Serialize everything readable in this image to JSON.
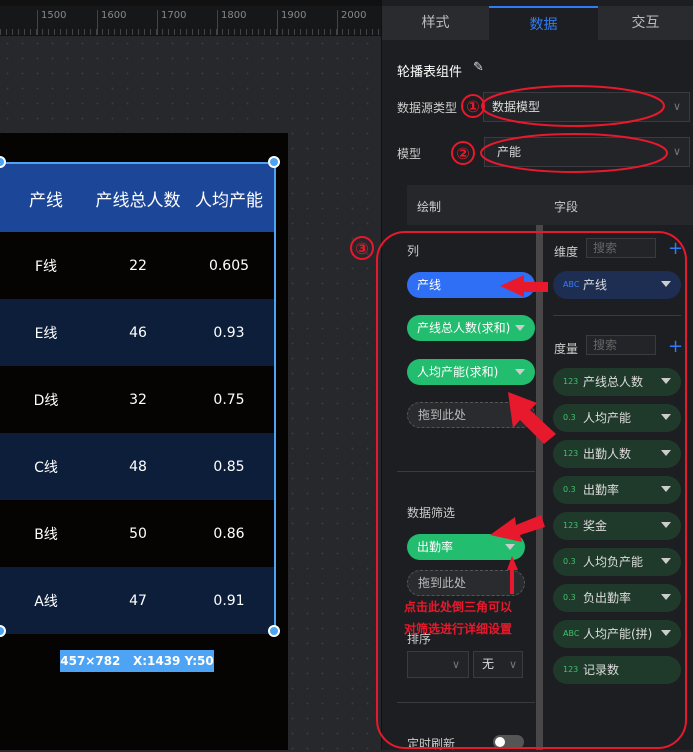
{
  "ruler": {
    "labels": [
      "1500",
      "1600",
      "1700",
      "1800",
      "1900",
      "2000"
    ]
  },
  "table": {
    "headers": [
      "产线",
      "产线总人数",
      "人均产能"
    ],
    "rows": [
      [
        "F线",
        "22",
        "0.605"
      ],
      [
        "E线",
        "46",
        "0.93"
      ],
      [
        "D线",
        "32",
        "0.75"
      ],
      [
        "C线",
        "48",
        "0.85"
      ],
      [
        "B线",
        "50",
        "0.86"
      ],
      [
        "A线",
        "47",
        "0.91"
      ]
    ],
    "header_color": "#1c4698",
    "alt_row_color": "#0d1e3a"
  },
  "selection": {
    "size_label": "457×782",
    "position_label": "X:1439 Y:50"
  },
  "panel": {
    "tabs": [
      "样式",
      "数据",
      "交互"
    ],
    "active_tab": "数据",
    "component_title": "轮播表组件",
    "datasource_label": "数据源类型",
    "datasource_value": "数据模型",
    "model_label": "模型",
    "model_value": "产能",
    "draw_header": "绘制",
    "field_header": "字段",
    "columns_label": "列",
    "columns": [
      "产线",
      "产线总人数(求和)",
      "人均产能(求和)"
    ],
    "drop_here": "拖到此处",
    "filter_label": "数据筛选",
    "filters": [
      "出勤率"
    ],
    "sort_label": "排序",
    "sort_field_value": "",
    "sort_order_value": "无",
    "auto_refresh_label": "定时刷新",
    "auto_refresh_on": false,
    "dimension_label": "维度",
    "measure_label": "度量",
    "search_placeholder": "搜索",
    "dimensions": [
      {
        "type": "ABC",
        "name": "产线"
      }
    ],
    "measures": [
      {
        "type": "123",
        "name": "产线总人数"
      },
      {
        "type": "0.3",
        "name": "人均产能"
      },
      {
        "type": "123",
        "name": "出勤人数"
      },
      {
        "type": "0.3",
        "name": "出勤率"
      },
      {
        "type": "123",
        "name": "奖金"
      },
      {
        "type": "0.3",
        "name": "人均负产能"
      },
      {
        "type": "0.3",
        "name": "负出勤率"
      },
      {
        "type": "ABC",
        "name": "人均产能(拼)"
      },
      {
        "type": "123",
        "name": "记录数"
      }
    ],
    "accent": "#2f7cf6",
    "measure_pill_color": "#22bd6e"
  },
  "annotations": {
    "markers": [
      "①",
      "②",
      "③"
    ],
    "note_line1": "点击此处倒三角可以",
    "note_line2": "对筛选进行详细设置",
    "color": "#e8192c"
  }
}
